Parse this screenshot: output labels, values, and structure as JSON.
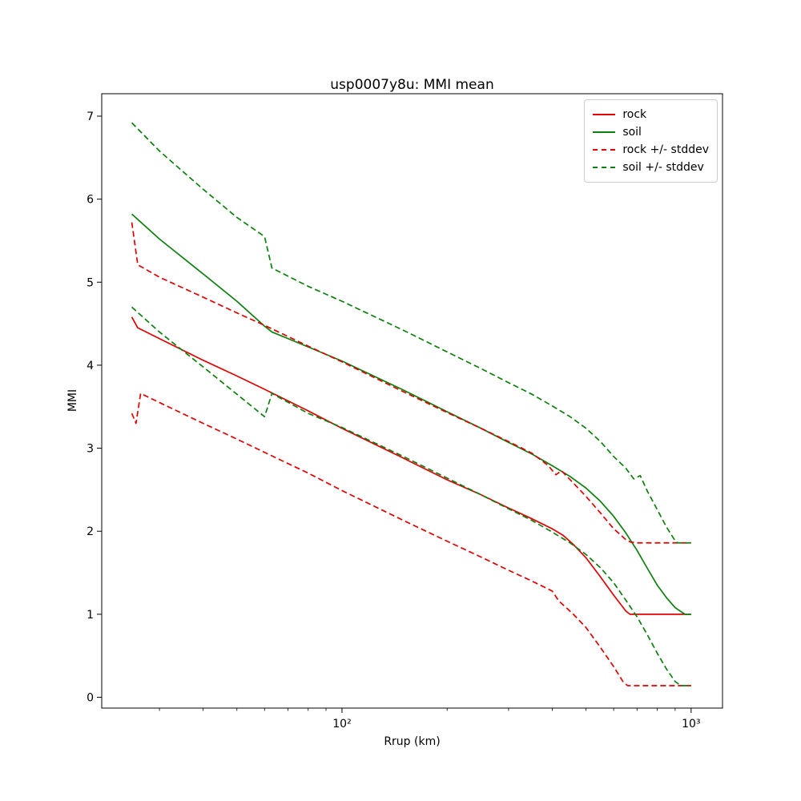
{
  "window": {
    "background": "#ffffff"
  },
  "chart_data": {
    "type": "line",
    "title": "usp0007y8u: MMI mean",
    "xlabel": "Rrup (km)",
    "ylabel": "MMI",
    "xscale": "log",
    "grid": false,
    "xlim": [
      20.5,
      1230
    ],
    "ylim": [
      -0.13,
      7.27
    ],
    "yticks": [
      0,
      1,
      2,
      3,
      4,
      5,
      6,
      7
    ],
    "xticks_major": [
      {
        "value": 100,
        "label": "10²"
      },
      {
        "value": 1000,
        "label": "10³"
      }
    ],
    "colors": {
      "rock": "#e00000",
      "soil": "#0c7f0c",
      "axis": "#000000",
      "legend_border": "#cccccc"
    },
    "legend": {
      "position": "upper right",
      "entries": [
        {
          "label": "rock",
          "style": "solid",
          "color": "#e00000"
        },
        {
          "label": "soil",
          "style": "solid",
          "color": "#0c7f0c"
        },
        {
          "label": "rock +/- stddev",
          "style": "dashed",
          "color": "#e00000"
        },
        {
          "label": "soil +/- stddev",
          "style": "dashed",
          "color": "#0c7f0c"
        }
      ]
    },
    "series": [
      {
        "name": "rock",
        "style": "solid",
        "color": "#e00000",
        "points": [
          [
            25,
            4.58
          ],
          [
            26,
            4.45
          ],
          [
            30,
            4.32
          ],
          [
            40,
            4.06
          ],
          [
            50,
            3.87
          ],
          [
            60,
            3.71
          ],
          [
            80,
            3.45
          ],
          [
            100,
            3.24
          ],
          [
            150,
            2.88
          ],
          [
            200,
            2.62
          ],
          [
            250,
            2.44
          ],
          [
            300,
            2.28
          ],
          [
            350,
            2.15
          ],
          [
            400,
            2.03
          ],
          [
            430,
            1.95
          ],
          [
            460,
            1.84
          ],
          [
            500,
            1.68
          ],
          [
            550,
            1.45
          ],
          [
            600,
            1.23
          ],
          [
            650,
            1.04
          ],
          [
            668,
            1.0
          ],
          [
            700,
            1.0
          ],
          [
            800,
            1.0
          ],
          [
            900,
            1.0
          ],
          [
            1000,
            1.0
          ]
        ]
      },
      {
        "name": "soil",
        "style": "solid",
        "color": "#0c7f0c",
        "points": [
          [
            25,
            5.82
          ],
          [
            30,
            5.52
          ],
          [
            40,
            5.1
          ],
          [
            50,
            4.77
          ],
          [
            60,
            4.47
          ],
          [
            63,
            4.4
          ],
          [
            80,
            4.22
          ],
          [
            100,
            4.05
          ],
          [
            150,
            3.7
          ],
          [
            200,
            3.44
          ],
          [
            250,
            3.24
          ],
          [
            300,
            3.07
          ],
          [
            350,
            2.93
          ],
          [
            400,
            2.79
          ],
          [
            450,
            2.66
          ],
          [
            500,
            2.52
          ],
          [
            550,
            2.36
          ],
          [
            600,
            2.18
          ],
          [
            650,
            1.98
          ],
          [
            700,
            1.77
          ],
          [
            750,
            1.55
          ],
          [
            800,
            1.35
          ],
          [
            850,
            1.2
          ],
          [
            900,
            1.08
          ],
          [
            960,
            1.0
          ],
          [
            1000,
            1.0
          ]
        ]
      },
      {
        "name": "rock_plus_stddev",
        "style": "dashed",
        "color": "#e00000",
        "points": [
          [
            25,
            5.72
          ],
          [
            26,
            5.21
          ],
          [
            30,
            5.06
          ],
          [
            40,
            4.82
          ],
          [
            50,
            4.63
          ],
          [
            60,
            4.48
          ],
          [
            80,
            4.23
          ],
          [
            100,
            4.04
          ],
          [
            150,
            3.68
          ],
          [
            200,
            3.43
          ],
          [
            250,
            3.24
          ],
          [
            300,
            3.08
          ],
          [
            350,
            2.94
          ],
          [
            390,
            2.79
          ],
          [
            410,
            2.68
          ],
          [
            425,
            2.73
          ],
          [
            460,
            2.58
          ],
          [
            500,
            2.42
          ],
          [
            550,
            2.22
          ],
          [
            600,
            2.03
          ],
          [
            650,
            1.9
          ],
          [
            670,
            1.87
          ],
          [
            700,
            1.86
          ],
          [
            800,
            1.86
          ],
          [
            900,
            1.86
          ],
          [
            1000,
            1.86
          ]
        ]
      },
      {
        "name": "rock_minus_stddev",
        "style": "dashed",
        "color": "#e00000",
        "points": [
          [
            25,
            3.42
          ],
          [
            25.7,
            3.3
          ],
          [
            26.5,
            3.66
          ],
          [
            30,
            3.55
          ],
          [
            40,
            3.3
          ],
          [
            50,
            3.11
          ],
          [
            60,
            2.95
          ],
          [
            80,
            2.7
          ],
          [
            100,
            2.49
          ],
          [
            150,
            2.13
          ],
          [
            200,
            1.88
          ],
          [
            250,
            1.69
          ],
          [
            300,
            1.53
          ],
          [
            350,
            1.4
          ],
          [
            400,
            1.28
          ],
          [
            418,
            1.16
          ],
          [
            460,
            1.0
          ],
          [
            500,
            0.84
          ],
          [
            550,
            0.6
          ],
          [
            600,
            0.37
          ],
          [
            640,
            0.18
          ],
          [
            658,
            0.14
          ],
          [
            700,
            0.14
          ],
          [
            800,
            0.14
          ],
          [
            900,
            0.14
          ],
          [
            1000,
            0.14
          ]
        ]
      },
      {
        "name": "soil_plus_stddev",
        "style": "dashed",
        "color": "#0c7f0c",
        "points": [
          [
            25,
            6.92
          ],
          [
            30,
            6.58
          ],
          [
            40,
            6.12
          ],
          [
            50,
            5.78
          ],
          [
            60,
            5.55
          ],
          [
            63,
            5.17
          ],
          [
            80,
            4.95
          ],
          [
            100,
            4.77
          ],
          [
            150,
            4.42
          ],
          [
            200,
            4.16
          ],
          [
            250,
            3.96
          ],
          [
            300,
            3.79
          ],
          [
            350,
            3.65
          ],
          [
            400,
            3.51
          ],
          [
            450,
            3.38
          ],
          [
            500,
            3.24
          ],
          [
            550,
            3.08
          ],
          [
            600,
            2.9
          ],
          [
            650,
            2.76
          ],
          [
            685,
            2.63
          ],
          [
            715,
            2.67
          ],
          [
            750,
            2.48
          ],
          [
            800,
            2.26
          ],
          [
            850,
            2.05
          ],
          [
            905,
            1.87
          ],
          [
            920,
            1.86
          ],
          [
            1000,
            1.86
          ]
        ]
      },
      {
        "name": "soil_minus_stddev",
        "style": "dashed",
        "color": "#0c7f0c",
        "points": [
          [
            25,
            4.7
          ],
          [
            30,
            4.4
          ],
          [
            40,
            3.98
          ],
          [
            50,
            3.65
          ],
          [
            60,
            3.38
          ],
          [
            63,
            3.66
          ],
          [
            80,
            3.42
          ],
          [
            100,
            3.25
          ],
          [
            150,
            2.9
          ],
          [
            200,
            2.64
          ],
          [
            250,
            2.44
          ],
          [
            300,
            2.27
          ],
          [
            350,
            2.13
          ],
          [
            400,
            1.99
          ],
          [
            450,
            1.86
          ],
          [
            500,
            1.72
          ],
          [
            550,
            1.56
          ],
          [
            600,
            1.38
          ],
          [
            650,
            1.17
          ],
          [
            700,
            0.97
          ],
          [
            750,
            0.75
          ],
          [
            800,
            0.53
          ],
          [
            850,
            0.34
          ],
          [
            900,
            0.19
          ],
          [
            935,
            0.14
          ],
          [
            1000,
            0.14
          ]
        ]
      }
    ]
  }
}
